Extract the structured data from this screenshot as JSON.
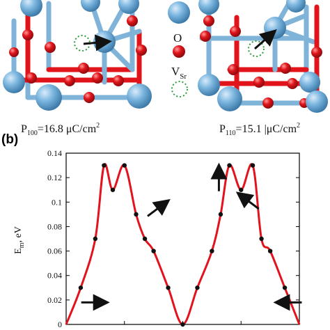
{
  "figure": {
    "panel_b_label": "(b)",
    "legend": {
      "oxygen": {
        "label": "O",
        "color": "#e0141a"
      },
      "vacancy": {
        "label_main": "V",
        "label_sub": "Sr",
        "color": "#2a9d3a"
      }
    },
    "caption_left": {
      "p": "P",
      "sub": "100",
      "rest": "=16.8 μC/cm",
      "sup": "2"
    },
    "caption_right": {
      "p": "P",
      "sub": "110",
      "rest": "=15.1 |μC/cm",
      "sup": "2"
    },
    "colors": {
      "sr_atom": "#6aaed6",
      "o_atom": "#d8141a",
      "bond_blue": "#7fb3d8",
      "bond_red": "#e0141a",
      "curve": "#e3121c"
    }
  },
  "chart_data": {
    "type": "line",
    "ylabel_main": "E",
    "ylabel_sub": "m",
    "ylabel_rest": ", eV",
    "ylim": [
      0,
      0.14
    ],
    "yticks": [
      "0",
      "0.02",
      "0.04",
      "0.06",
      "0.08",
      "0.1",
      "0.12",
      "0.14"
    ],
    "xlim": [
      0,
      4
    ],
    "series": [
      {
        "x": [
          0,
          0.25,
          0.5,
          0.65,
          0.8,
          1.0,
          1.2,
          1.35,
          1.5,
          1.75,
          2.0,
          2.25,
          2.5,
          2.65,
          2.8,
          3.0,
          3.2,
          3.35,
          3.5,
          3.75,
          4.0
        ],
        "y": [
          0,
          0.03,
          0.07,
          0.13,
          0.11,
          0.13,
          0.09,
          0.07,
          0.06,
          0.03,
          0,
          0.03,
          0.06,
          0.09,
          0.13,
          0.11,
          0.13,
          0.07,
          0.06,
          0.03,
          0
        ]
      }
    ],
    "markers": [
      {
        "x": 0.18,
        "y": 0.01
      },
      {
        "x": 0.43,
        "y": 0.03
      },
      {
        "x": 0.63,
        "y": 0.07
      },
      {
        "x": 0.9,
        "y": 0.09
      },
      {
        "x": 1.18,
        "y": 0.13
      },
      {
        "x": 1.6,
        "y": 0.11
      },
      {
        "x": 1.95,
        "y": 0.13
      },
      {
        "x": 2.35,
        "y": 0.09
      },
      {
        "x": 2.8,
        "y": 0.07
      },
      {
        "x": 3.17,
        "y": 0.03
      },
      {
        "x": 3.45,
        "y": 0.01
      }
    ],
    "arrows": [
      {
        "x": 0.45,
        "y": 0.018,
        "dir": "right"
      },
      {
        "x": 1.55,
        "y": 0.094,
        "dir": "up-right"
      },
      {
        "x": 2.62,
        "y": 0.118,
        "dir": "up"
      },
      {
        "x": 3.15,
        "y": 0.1,
        "dir": "up-left"
      },
      {
        "x": 3.85,
        "y": 0.018,
        "dir": "left"
      }
    ]
  }
}
